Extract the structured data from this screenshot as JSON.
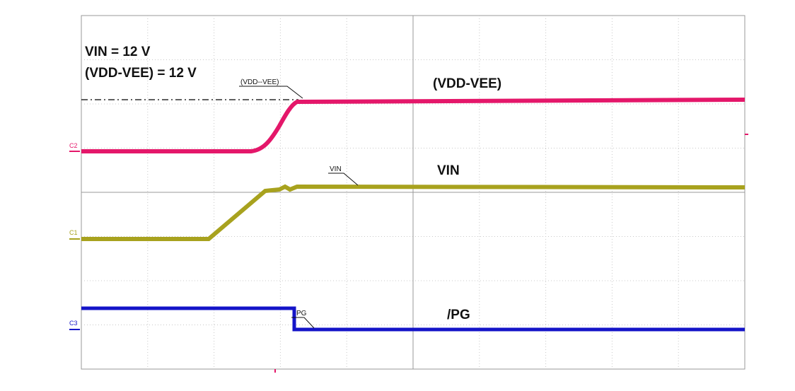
{
  "annotations": {
    "vin_setting": "VIN = 12 V",
    "vdd_vee_setting": "(VDD-VEE) = 12 V"
  },
  "traces": [
    {
      "channel": "C2",
      "label": "(VDD-VEE)",
      "cursor_label": "(VDD--VEE)"
    },
    {
      "channel": "C1",
      "label": "VIN",
      "cursor_label": "VIN"
    },
    {
      "channel": "C3",
      "label": "/PG",
      "cursor_label": "PG"
    }
  ]
}
